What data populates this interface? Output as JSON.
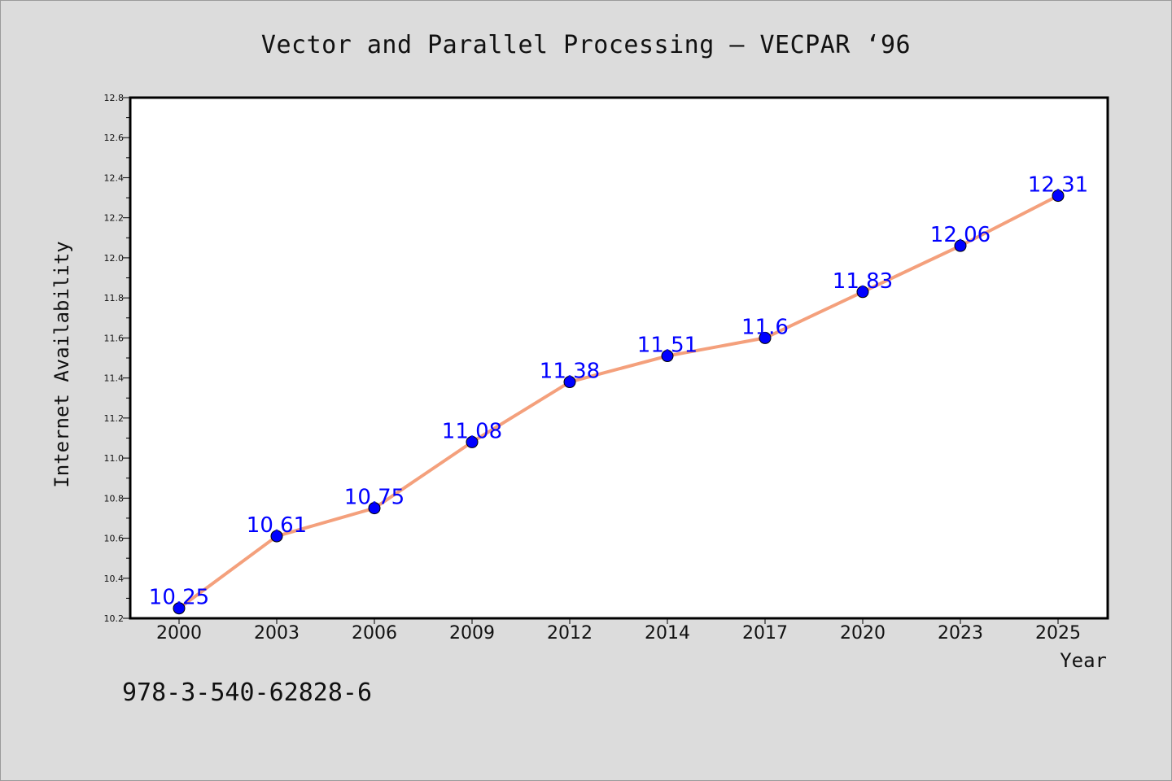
{
  "title": "Vector and Parallel Processing – VECPAR ‘96",
  "note": "978-3-540-62828-6",
  "chart_data": {
    "type": "line",
    "title": "Vector and Parallel Processing – VECPAR ‘96",
    "xlabel": "Year",
    "ylabel": "Internet Availability",
    "categories": [
      "2000",
      "2003",
      "2006",
      "2009",
      "2012",
      "2014",
      "2017",
      "2020",
      "2023",
      "2025"
    ],
    "series": [
      {
        "values": [
          10.25,
          10.61,
          10.75,
          11.08,
          11.38,
          11.51,
          11.6,
          11.83,
          12.06,
          12.31
        ],
        "labels": [
          "10.25",
          "10.61",
          "10.75",
          "11.08",
          "11.38",
          "11.51",
          "11.6",
          "11.83",
          "12.06",
          "12.31"
        ],
        "line_color": "#f4a07c",
        "marker_color": "#0000ff"
      }
    ],
    "ylim": [
      10.2,
      12.8
    ],
    "yticks": [
      "10.2",
      "10.4",
      "10.6",
      "10.8",
      "11.0",
      "11.2",
      "11.4",
      "11.6",
      "11.8",
      "12.0",
      "12.2",
      "12.4",
      "12.6",
      "12.8"
    ],
    "grid": false,
    "legend": "none"
  }
}
